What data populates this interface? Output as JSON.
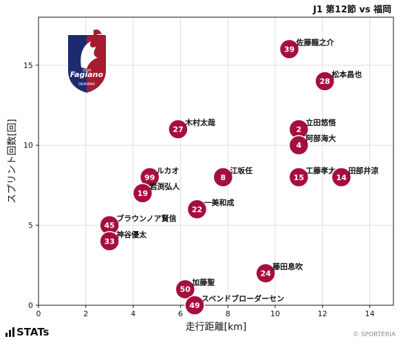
{
  "header": {
    "title": "J1 第12節 vs 福岡"
  },
  "footer": {
    "brand": "STATs",
    "copyright": "© SPORTERIA"
  },
  "team_logo": {
    "name": "Fagiano Okayama",
    "text": "Fagiano",
    "city": "OKAYAMA",
    "year": "2004",
    "colors": [
      "#1d2a6d",
      "#a51c30",
      "#ffffff"
    ]
  },
  "colors": {
    "marker": "#a50f3c",
    "marker_stroke": "#ffffff",
    "grid": "#dddddd"
  },
  "chart_data": {
    "type": "scatter",
    "xlabel": "走行距離[km]",
    "ylabel": "スプリント回数[回]",
    "xlim": [
      0,
      15
    ],
    "ylim": [
      0,
      18
    ],
    "xticks": [
      0,
      2,
      4,
      6,
      8,
      10,
      12,
      14
    ],
    "yticks": [
      0,
      5,
      10,
      15
    ],
    "grid": true,
    "points": [
      {
        "number": "39",
        "name": "佐藤龍之介",
        "x": 10.6,
        "y": 16
      },
      {
        "number": "28",
        "name": "松本昌也",
        "x": 12.1,
        "y": 14
      },
      {
        "number": "27",
        "name": "木村太哉",
        "x": 5.9,
        "y": 11
      },
      {
        "number": "2",
        "name": "立田悠悟",
        "x": 11.0,
        "y": 11
      },
      {
        "number": "4",
        "name": "阿部海大",
        "x": 11.0,
        "y": 10
      },
      {
        "number": "99",
        "name": "ルカオ",
        "x": 4.7,
        "y": 8
      },
      {
        "number": "8",
        "name": "江坂任",
        "x": 7.8,
        "y": 8
      },
      {
        "number": "15",
        "name": "工藤孝太",
        "x": 11.0,
        "y": 8
      },
      {
        "number": "14",
        "name": "田部井涼",
        "x": 12.8,
        "y": 8
      },
      {
        "number": "19",
        "name": "岩渕弘人",
        "x": 4.4,
        "y": 7
      },
      {
        "number": "22",
        "name": "一美和成",
        "x": 6.7,
        "y": 6
      },
      {
        "number": "45",
        "name": "ブラウンノア賢信",
        "x": 3.0,
        "y": 5
      },
      {
        "number": "33",
        "name": "神谷優太",
        "x": 3.0,
        "y": 4
      },
      {
        "number": "24",
        "name": "藤田息吹",
        "x": 9.6,
        "y": 2
      },
      {
        "number": "50",
        "name": "加藤聖",
        "x": 6.2,
        "y": 1
      },
      {
        "number": "49",
        "name": "スベンドブローダーセン",
        "x": 6.6,
        "y": 0
      }
    ]
  }
}
